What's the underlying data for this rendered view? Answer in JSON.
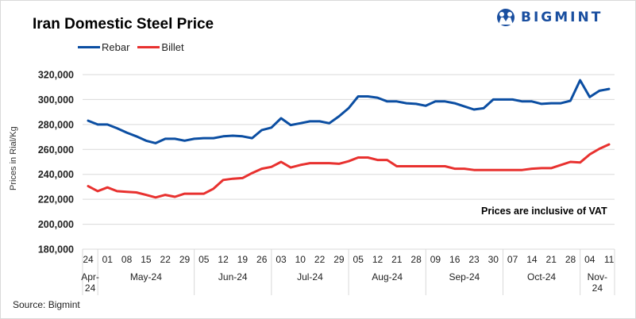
{
  "title": "Iran Domestic Steel Price",
  "brand": {
    "name": "BIGMINT",
    "color": "#1a4fa0"
  },
  "note": "Prices are inclusive  of VAT",
  "source": "Source: Bigmint",
  "chart_data": {
    "type": "line",
    "title": "Iran Domestic Steel Price",
    "xlabel": "",
    "ylabel": "Prices in Rial/Kg",
    "ylim": [
      180000,
      320000
    ],
    "yticks": [
      180000,
      200000,
      220000,
      240000,
      260000,
      280000,
      300000,
      320000
    ],
    "ytick_labels": [
      "180,000",
      "200,000",
      "220,000",
      "240,000",
      "260,000",
      "280,000",
      "300,000",
      "320,000"
    ],
    "grid": true,
    "legend": "top-left",
    "x_tick_labels": [
      "24",
      "01",
      "08",
      "15",
      "22",
      "29",
      "05",
      "12",
      "19",
      "26",
      "03",
      "10",
      "22",
      "29",
      "05",
      "12",
      "21",
      "28",
      "09",
      "16",
      "23",
      "30",
      "07",
      "14",
      "21",
      "28",
      "04",
      "11"
    ],
    "month_groups": [
      {
        "label": "Apr-\n24",
        "ticks": 1
      },
      {
        "label": "May-24",
        "ticks": 5
      },
      {
        "label": "Jun-24",
        "ticks": 4
      },
      {
        "label": "Jul-24",
        "ticks": 4
      },
      {
        "label": "Aug-24",
        "ticks": 4
      },
      {
        "label": "Sep-24",
        "ticks": 4
      },
      {
        "label": "Oct-24",
        "ticks": 4
      },
      {
        "label": "Nov-\n24",
        "ticks": 2
      }
    ],
    "series": [
      {
        "name": "Rebar",
        "color": "#0b4ea2",
        "values": [
          283000,
          280000,
          280000,
          277000,
          273500,
          270500,
          267000,
          265000,
          268500,
          268500,
          267000,
          268500,
          269000,
          269000,
          270500,
          271000,
          270500,
          269000,
          275500,
          277500,
          285000,
          279500,
          281000,
          282500,
          282500,
          281000,
          286500,
          293000,
          302500,
          302500,
          301500,
          298500,
          298500,
          297000,
          296500,
          295000,
          298500,
          298500,
          297000,
          294500,
          292000,
          293000,
          300000,
          300000,
          300000,
          298500,
          298500,
          296500,
          297000,
          297000,
          299000,
          315500,
          302000,
          307000,
          308500
        ]
      },
      {
        "name": "Billet",
        "color": "#e8312f",
        "values": [
          230500,
          226500,
          229500,
          226500,
          226000,
          225500,
          223500,
          221500,
          223500,
          222000,
          224500,
          224500,
          224500,
          228500,
          235500,
          236500,
          237000,
          241000,
          244500,
          246000,
          250000,
          245500,
          247500,
          249000,
          249000,
          249000,
          248500,
          250500,
          253500,
          253500,
          251500,
          251500,
          246500,
          246500,
          246500,
          246500,
          246500,
          246500,
          244500,
          244500,
          243500,
          243500,
          243500,
          243500,
          243500,
          243500,
          244500,
          245000,
          245000,
          247500,
          250000,
          249500,
          256000,
          260500,
          264000
        ]
      }
    ]
  }
}
